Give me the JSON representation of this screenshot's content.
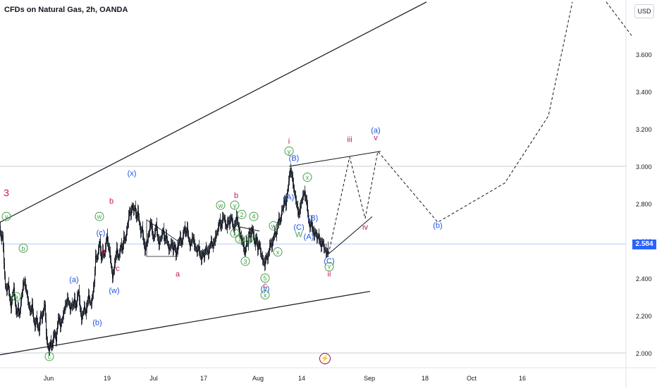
{
  "header": {
    "title": "CFDs on Natural Gas, 2h, OANDA",
    "currency": "USD"
  },
  "colors": {
    "up_candle": "#131722",
    "down_candle": "#131722",
    "price_line": "#2962ff",
    "red_label": "#c2185b",
    "green_label": "#43a047",
    "blue_label": "#1e53e5",
    "grid": "#d1d4dc"
  },
  "icons": {
    "event_icon": "flash-icon"
  },
  "chart_data": {
    "type": "candlestick",
    "symbol": "CFDs on Natural Gas, 2h, OANDA",
    "y_axis": {
      "ticks": [
        "2.000",
        "2.200",
        "2.400",
        "2.600",
        "2.800",
        "3.000",
        "3.200",
        "3.400",
        "3.600"
      ],
      "ylim": [
        1.94,
        3.88
      ],
      "last_price": "2.584"
    },
    "x_axis": {
      "ticks": [
        "Jun",
        "19",
        "Jul",
        "17",
        "Aug",
        "14",
        "Sep",
        "18",
        "Oct",
        "16"
      ]
    },
    "horizontal_lines": [
      2.0,
      3.0
    ],
    "price_path": [
      [
        0,
        2.68
      ],
      [
        2,
        2.61
      ],
      [
        4,
        2.63
      ],
      [
        6,
        2.48
      ],
      [
        8,
        2.36
      ],
      [
        10,
        2.33
      ],
      [
        12,
        2.37
      ],
      [
        14,
        2.3
      ],
      [
        16,
        2.24
      ],
      [
        18,
        2.31
      ],
      [
        20,
        2.35
      ],
      [
        22,
        2.26
      ],
      [
        24,
        2.21
      ],
      [
        26,
        2.24
      ],
      [
        28,
        2.2
      ],
      [
        30,
        2.27
      ],
      [
        32,
        2.33
      ],
      [
        34,
        2.38
      ],
      [
        36,
        2.37
      ],
      [
        38,
        2.33
      ],
      [
        40,
        2.28
      ],
      [
        42,
        2.24
      ],
      [
        44,
        2.22
      ],
      [
        46,
        2.26
      ],
      [
        48,
        2.18
      ],
      [
        50,
        2.14
      ],
      [
        52,
        2.19
      ],
      [
        54,
        2.14
      ],
      [
        56,
        2.12
      ],
      [
        58,
        2.21
      ],
      [
        60,
        2.18
      ],
      [
        62,
        2.23
      ],
      [
        64,
        2.26
      ],
      [
        66,
        2.1
      ],
      [
        68,
        2.04
      ],
      [
        70,
        2.01
      ],
      [
        72,
        2.06
      ],
      [
        74,
        2.03
      ],
      [
        76,
        2.08
      ],
      [
        78,
        2.11
      ],
      [
        80,
        2.06
      ],
      [
        82,
        2.16
      ],
      [
        84,
        2.19
      ],
      [
        86,
        2.14
      ],
      [
        88,
        2.17
      ],
      [
        90,
        2.2
      ],
      [
        92,
        2.24
      ],
      [
        94,
        2.26
      ],
      [
        96,
        2.29
      ],
      [
        98,
        2.27
      ],
      [
        100,
        2.23
      ],
      [
        102,
        2.26
      ],
      [
        104,
        2.25
      ],
      [
        106,
        2.29
      ],
      [
        108,
        2.24
      ],
      [
        110,
        2.3
      ],
      [
        112,
        2.33
      ],
      [
        114,
        2.24
      ],
      [
        116,
        2.18
      ],
      [
        118,
        2.21
      ],
      [
        120,
        2.25
      ],
      [
        122,
        2.21
      ],
      [
        124,
        2.26
      ],
      [
        126,
        2.31
      ],
      [
        128,
        2.27
      ],
      [
        130,
        2.26
      ],
      [
        132,
        2.32
      ],
      [
        134,
        2.37
      ],
      [
        136,
        2.52
      ],
      [
        138,
        2.5
      ],
      [
        140,
        2.55
      ],
      [
        142,
        2.6
      ],
      [
        144,
        2.5
      ],
      [
        146,
        2.55
      ],
      [
        148,
        2.52
      ],
      [
        150,
        2.56
      ],
      [
        152,
        2.63
      ],
      [
        154,
        2.57
      ],
      [
        156,
        2.54
      ],
      [
        158,
        2.47
      ],
      [
        160,
        2.4
      ],
      [
        162,
        2.45
      ],
      [
        164,
        2.5
      ],
      [
        166,
        2.56
      ],
      [
        168,
        2.51
      ],
      [
        170,
        2.53
      ],
      [
        172,
        2.58
      ],
      [
        174,
        2.55
      ],
      [
        176,
        2.62
      ],
      [
        178,
        2.6
      ],
      [
        180,
        2.65
      ],
      [
        182,
        2.7
      ],
      [
        184,
        2.76
      ],
      [
        186,
        2.74
      ],
      [
        188,
        2.79
      ],
      [
        190,
        2.76
      ],
      [
        192,
        2.78
      ],
      [
        194,
        2.72
      ],
      [
        196,
        2.76
      ],
      [
        198,
        2.7
      ],
      [
        200,
        2.64
      ],
      [
        202,
        2.67
      ],
      [
        204,
        2.6
      ],
      [
        206,
        2.55
      ],
      [
        208,
        2.58
      ],
      [
        210,
        2.61
      ],
      [
        212,
        2.65
      ],
      [
        214,
        2.7
      ],
      [
        216,
        2.66
      ],
      [
        218,
        2.61
      ],
      [
        220,
        2.64
      ],
      [
        222,
        2.69
      ],
      [
        224,
        2.62
      ],
      [
        226,
        2.58
      ],
      [
        228,
        2.61
      ],
      [
        230,
        2.63
      ],
      [
        232,
        2.66
      ],
      [
        234,
        2.6
      ],
      [
        236,
        2.63
      ],
      [
        238,
        2.59
      ],
      [
        240,
        2.55
      ],
      [
        242,
        2.57
      ],
      [
        244,
        2.59
      ],
      [
        246,
        2.55
      ],
      [
        248,
        2.58
      ],
      [
        250,
        2.52
      ],
      [
        252,
        2.56
      ],
      [
        254,
        2.59
      ],
      [
        256,
        2.62
      ],
      [
        258,
        2.58
      ],
      [
        260,
        2.63
      ],
      [
        262,
        2.67
      ],
      [
        264,
        2.64
      ],
      [
        266,
        2.67
      ],
      [
        268,
        2.61
      ],
      [
        270,
        2.57
      ],
      [
        272,
        2.6
      ],
      [
        274,
        2.62
      ],
      [
        276,
        2.58
      ],
      [
        278,
        2.56
      ],
      [
        280,
        2.54
      ],
      [
        282,
        2.57
      ],
      [
        284,
        2.53
      ],
      [
        286,
        2.5
      ],
      [
        288,
        2.54
      ],
      [
        290,
        2.51
      ],
      [
        292,
        2.56
      ],
      [
        294,
        2.55
      ],
      [
        296,
        2.53
      ],
      [
        298,
        2.57
      ],
      [
        300,
        2.6
      ],
      [
        302,
        2.57
      ],
      [
        304,
        2.59
      ],
      [
        306,
        2.62
      ],
      [
        308,
        2.64
      ],
      [
        310,
        2.67
      ],
      [
        312,
        2.71
      ],
      [
        314,
        2.67
      ],
      [
        316,
        2.72
      ],
      [
        318,
        2.73
      ],
      [
        320,
        2.69
      ],
      [
        322,
        2.67
      ],
      [
        324,
        2.71
      ],
      [
        326,
        2.69
      ],
      [
        328,
        2.73
      ],
      [
        330,
        2.7
      ],
      [
        332,
        2.66
      ],
      [
        334,
        2.69
      ],
      [
        336,
        2.73
      ],
      [
        338,
        2.69
      ],
      [
        340,
        2.65
      ],
      [
        342,
        2.62
      ],
      [
        344,
        2.6
      ],
      [
        346,
        2.57
      ],
      [
        348,
        2.53
      ],
      [
        350,
        2.6
      ],
      [
        352,
        2.58
      ],
      [
        354,
        2.65
      ],
      [
        356,
        2.62
      ],
      [
        358,
        2.67
      ],
      [
        360,
        2.63
      ],
      [
        362,
        2.58
      ],
      [
        364,
        2.62
      ],
      [
        366,
        2.55
      ],
      [
        368,
        2.59
      ],
      [
        370,
        2.54
      ],
      [
        372,
        2.51
      ],
      [
        374,
        2.49
      ],
      [
        376,
        2.47
      ],
      [
        378,
        2.52
      ],
      [
        380,
        2.5
      ],
      [
        382,
        2.55
      ],
      [
        384,
        2.59
      ],
      [
        386,
        2.57
      ],
      [
        388,
        2.61
      ],
      [
        390,
        2.65
      ],
      [
        392,
        2.63
      ],
      [
        394,
        2.68
      ],
      [
        396,
        2.72
      ],
      [
        398,
        2.7
      ],
      [
        400,
        2.76
      ],
      [
        402,
        2.78
      ],
      [
        404,
        2.82
      ],
      [
        406,
        2.79
      ],
      [
        408,
        2.86
      ],
      [
        410,
        2.92
      ],
      [
        412,
        2.98
      ],
      [
        414,
        2.96
      ],
      [
        416,
        2.91
      ],
      [
        418,
        2.86
      ],
      [
        420,
        2.82
      ],
      [
        422,
        2.78
      ],
      [
        424,
        2.74
      ],
      [
        426,
        2.77
      ],
      [
        428,
        2.81
      ],
      [
        430,
        2.84
      ],
      [
        432,
        2.86
      ],
      [
        434,
        2.83
      ],
      [
        436,
        2.79
      ],
      [
        438,
        2.71
      ],
      [
        440,
        2.67
      ],
      [
        442,
        2.7
      ],
      [
        444,
        2.66
      ],
      [
        446,
        2.63
      ],
      [
        448,
        2.65
      ],
      [
        450,
        2.61
      ],
      [
        452,
        2.63
      ],
      [
        454,
        2.6
      ],
      [
        456,
        2.57
      ],
      [
        458,
        2.6
      ],
      [
        460,
        2.56
      ],
      [
        462,
        2.55
      ],
      [
        464,
        2.53
      ],
      [
        466,
        2.56
      ]
    ],
    "projection": {
      "solid_segments": [
        [
          [
            410,
            3.0
          ],
          [
            540,
            3.08
          ]
        ],
        [
          [
            466,
            2.53
          ],
          [
            528,
            2.73
          ]
        ]
      ],
      "dashed_path": [
        [
          466,
          2.53
        ],
        [
          496,
          3.05
        ],
        [
          518,
          2.72
        ],
        [
          536,
          3.08
        ],
        [
          621,
          2.7
        ],
        [
          716,
          2.91
        ],
        [
          778,
          3.27
        ],
        [
          812,
          3.88
        ]
      ],
      "dashed_path_2": [
        [
          860,
          3.88
        ],
        [
          896,
          3.7
        ]
      ]
    },
    "trend_lines": [
      [
        [
          0,
          2.7
        ],
        [
          605,
          3.88
        ]
      ],
      [
        [
          0,
          1.99
        ],
        [
          525,
          2.33
        ]
      ]
    ],
    "annotations": [
      {
        "text": "3",
        "x": 9,
        "y": 2.84,
        "color": "red",
        "circled": false
      },
      {
        "text": "y",
        "x": 9,
        "y": 2.72,
        "color": "green",
        "circled": true
      },
      {
        "text": "b",
        "x": 33,
        "y": 2.55,
        "color": "green",
        "circled": true
      },
      {
        "text": "a",
        "x": 23,
        "y": 2.29,
        "color": "green",
        "circled": true
      },
      {
        "text": "c",
        "x": 70,
        "y": 1.97,
        "color": "green",
        "circled": true
      },
      {
        "text": "(a)",
        "x": 105,
        "y": 2.38,
        "color": "blue",
        "circled": false
      },
      {
        "text": "(b)",
        "x": 138,
        "y": 2.15,
        "color": "blue",
        "circled": false
      },
      {
        "text": "w",
        "x": 141,
        "y": 2.72,
        "color": "green",
        "circled": true
      },
      {
        "text": "(c)",
        "x": 143,
        "y": 2.63,
        "color": "blue",
        "circled": false
      },
      {
        "text": "a",
        "x": 147,
        "y": 2.53,
        "color": "red",
        "circled": false
      },
      {
        "text": "b",
        "x": 158,
        "y": 2.8,
        "color": "red",
        "circled": false
      },
      {
        "text": "c",
        "x": 167,
        "y": 2.44,
        "color": "red",
        "circled": false
      },
      {
        "text": "(w)",
        "x": 162,
        "y": 2.32,
        "color": "blue",
        "circled": false
      },
      {
        "text": "(x)",
        "x": 187,
        "y": 2.95,
        "color": "blue",
        "circled": false
      },
      {
        "text": "a",
        "x": 252,
        "y": 2.41,
        "color": "red",
        "circled": false
      },
      {
        "text": "w",
        "x": 313,
        "y": 2.78,
        "color": "green",
        "circled": true
      },
      {
        "text": "b",
        "x": 335,
        "y": 2.83,
        "color": "red",
        "circled": false
      },
      {
        "text": "y",
        "x": 333,
        "y": 2.78,
        "color": "green",
        "circled": true
      },
      {
        "text": "2",
        "x": 343,
        "y": 2.73,
        "color": "green",
        "circled": true
      },
      {
        "text": "4",
        "x": 360,
        "y": 2.72,
        "color": "green",
        "circled": true
      },
      {
        "text": "x",
        "x": 333,
        "y": 2.63,
        "color": "green",
        "circled": true
      },
      {
        "text": "1",
        "x": 340,
        "y": 2.6,
        "color": "green",
        "circled": true
      },
      {
        "text": "z",
        "x": 353,
        "y": 2.6,
        "color": "green",
        "circled": true
      },
      {
        "text": "3",
        "x": 348,
        "y": 2.48,
        "color": "green",
        "circled": true
      },
      {
        "text": "w",
        "x": 388,
        "y": 2.67,
        "color": "green",
        "circled": true
      },
      {
        "text": "x",
        "x": 394,
        "y": 2.53,
        "color": "green",
        "circled": true
      },
      {
        "text": "5",
        "x": 376,
        "y": 2.39,
        "color": "green",
        "circled": true
      },
      {
        "text": "c",
        "x": 376,
        "y": 2.35,
        "color": "red",
        "circled": false
      },
      {
        "text": "(y)",
        "x": 376,
        "y": 2.33,
        "color": "blue",
        "circled": false
      },
      {
        "text": "x",
        "x": 376,
        "y": 2.3,
        "color": "green",
        "circled": true
      },
      {
        "text": "i",
        "x": 410,
        "y": 3.12,
        "color": "red",
        "circled": false
      },
      {
        "text": "y",
        "x": 410,
        "y": 3.07,
        "color": "green",
        "circled": true
      },
      {
        "text": "(B)",
        "x": 417,
        "y": 3.03,
        "color": "blue",
        "circled": false
      },
      {
        "text": "x",
        "x": 436,
        "y": 2.93,
        "color": "green",
        "circled": true
      },
      {
        "text": "(A)",
        "x": 410,
        "y": 2.82,
        "color": "blue",
        "circled": false
      },
      {
        "text": "(B)",
        "x": 444,
        "y": 2.71,
        "color": "blue",
        "circled": false
      },
      {
        "text": "(C)",
        "x": 424,
        "y": 2.66,
        "color": "blue",
        "circled": false
      },
      {
        "text": "W",
        "x": 424,
        "y": 2.62,
        "color": "green",
        "circled": false
      },
      {
        "text": "(A)",
        "x": 438,
        "y": 2.61,
        "color": "blue",
        "circled": false
      },
      {
        "text": "(C)",
        "x": 467,
        "y": 2.48,
        "color": "blue",
        "circled": false
      },
      {
        "text": "Y",
        "x": 467,
        "y": 2.45,
        "color": "green",
        "circled": true
      },
      {
        "text": "ii",
        "x": 467,
        "y": 2.41,
        "color": "red",
        "circled": false
      },
      {
        "text": "iii",
        "x": 496,
        "y": 3.13,
        "color": "red",
        "circled": false
      },
      {
        "text": "iv",
        "x": 518,
        "y": 2.66,
        "color": "red",
        "circled": false
      },
      {
        "text": "(a)",
        "x": 533,
        "y": 3.18,
        "color": "blue",
        "circled": false
      },
      {
        "text": "v",
        "x": 533,
        "y": 3.14,
        "color": "red",
        "circled": false
      },
      {
        "text": "(b)",
        "x": 621,
        "y": 2.67,
        "color": "blue",
        "circled": false
      }
    ]
  }
}
